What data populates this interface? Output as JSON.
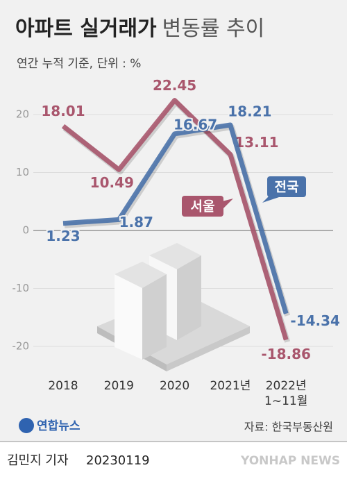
{
  "chart_data": {
    "type": "line",
    "title": [
      "아파트 실거래가",
      "변동률 추이"
    ],
    "subtitle": "연간 누적 기준, 단위 : %",
    "categories": [
      "2018",
      "2019",
      "2020",
      "2021년",
      "2022년\n1~11월"
    ],
    "series": [
      {
        "name": "서울",
        "color": "#a9566d",
        "values": [
          18.01,
          10.49,
          22.45,
          13.11,
          -18.86
        ]
      },
      {
        "name": "전국",
        "color": "#4a72aa",
        "values": [
          1.23,
          1.87,
          16.67,
          18.21,
          -14.34
        ]
      }
    ],
    "ylim": [
      -22,
      24
    ],
    "yticks": [
      -20,
      -10,
      0,
      10,
      20
    ],
    "grid": true,
    "source": "자료: 한국부동산원"
  },
  "footer": {
    "logo": "연합뉴스",
    "credit": "김민지 기자",
    "date": "20230119",
    "watermark": "YONHAP NEWS"
  }
}
